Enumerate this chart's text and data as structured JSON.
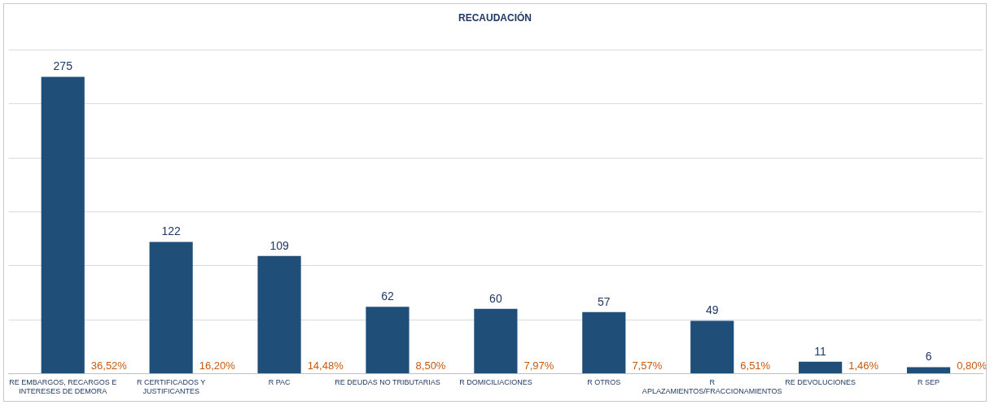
{
  "chart_data": {
    "type": "bar",
    "title": "RECAUDACIÓN",
    "categories": [
      "RE EMBARGOS, RECARGOS E INTERESES DE DEMORA",
      "R CERTIFICADOS Y JUSTIFICANTES",
      "R PAC",
      "RE DEUDAS NO TRIBUTARIAS",
      "R DOMICILIACIONES",
      "R OTROS",
      "R APLAZAMIENTOS/FRACCIONAMIENTOS",
      "RE DEVOLUCIONES",
      "R SEP"
    ],
    "values": [
      275,
      122,
      109,
      62,
      60,
      57,
      49,
      11,
      6
    ],
    "color": "#1f4e79",
    "data_labels": true,
    "ylim": [
      0,
      300
    ],
    "yticks": [
      0,
      50,
      100,
      150,
      200,
      250,
      300
    ],
    "tick_labels": "x",
    "grid": "y",
    "legend": false,
    "annotations": [
      {
        "text": "36,52%",
        "x": "RE EMBARGOS, RECARGOS E INTERESES DE DEMORA",
        "y": 0
      },
      {
        "text": "16,20%",
        "x": "R CERTIFICADOS Y JUSTIFICANTES",
        "y": 0
      },
      {
        "text": "14,48%",
        "x": "R PAC",
        "y": 0
      },
      {
        "text": "8,50%",
        "x": "RE DEUDAS NO TRIBUTARIAS",
        "y": 0
      },
      {
        "text": "7,97%",
        "x": "R DOMICILIACIONES",
        "y": 0
      },
      {
        "text": "7,57%",
        "x": "R OTROS",
        "y": 0
      },
      {
        "text": "6,51%",
        "x": "R APLAZAMIENTOS/FRACCIONAMIENTOS",
        "y": 0
      },
      {
        "text": "1,46%",
        "x": "RE DEVOLUCIONES",
        "y": 0
      },
      {
        "text": "0,80%",
        "x": "R SEP",
        "y": 0
      }
    ]
  }
}
